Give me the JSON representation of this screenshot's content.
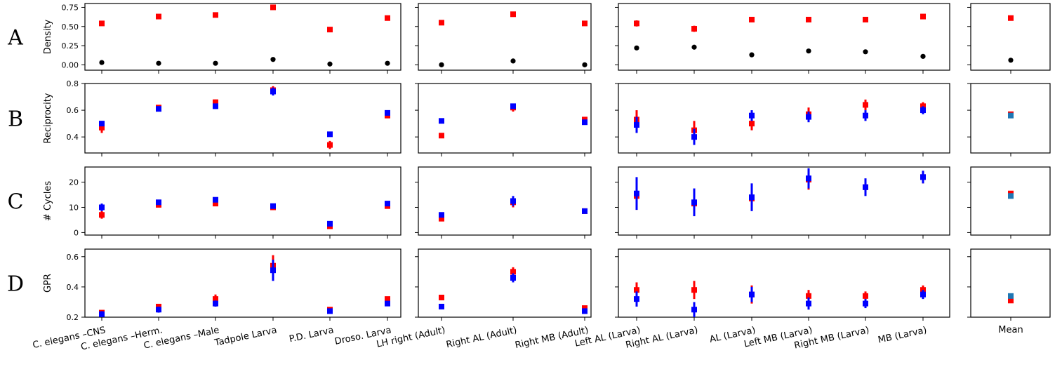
{
  "chart_data": {
    "type": "scatter",
    "grid": false,
    "colors": {
      "red": "#ff0000",
      "blue": "#0000ff",
      "black": "#000000",
      "teal": "#1f77b4"
    },
    "row_letters": [
      "A",
      "B",
      "C",
      "D"
    ],
    "groups": [
      {
        "categories": [
          "C. elegans –CNS",
          "C. elegans –Herm.",
          "C. elegans –Male",
          "Tadpole Larva",
          "P.D. Larva",
          "Droso. Larva"
        ]
      },
      {
        "categories": [
          "LH right (Adult)",
          "Right AL (Adult)",
          "Right MB (Adult)"
        ]
      },
      {
        "categories": [
          "Left AL (Larva)",
          "Right AL (Larva)",
          "AL (Larva)",
          "Left MB (Larva)",
          "Right MB (Larva)",
          "MB (Larva)"
        ]
      },
      {
        "categories": [
          "Mean"
        ]
      }
    ],
    "rows": [
      {
        "ylabel": "Density",
        "ylim": [
          -0.07,
          0.8
        ],
        "yticks": [
          0.0,
          0.25,
          0.5,
          0.75
        ],
        "ytick_labels": [
          "0.00",
          "0.25",
          "0.50",
          "0.75"
        ],
        "groups": [
          {
            "series": [
              {
                "color": "red",
                "marker": "square",
                "values": [
                  0.54,
                  0.63,
                  0.65,
                  0.75,
                  0.46,
                  0.61
                ],
                "err": [
                  0,
                  0,
                  0,
                  0,
                  0,
                  0
                ]
              },
              {
                "color": "black",
                "marker": "circle",
                "values": [
                  0.03,
                  0.02,
                  0.02,
                  0.07,
                  0.01,
                  0.02
                ],
                "err": [
                  0,
                  0,
                  0,
                  0,
                  0,
                  0
                ]
              }
            ]
          },
          {
            "series": [
              {
                "color": "red",
                "marker": "square",
                "values": [
                  0.55,
                  0.66,
                  0.54
                ],
                "err": [
                  0,
                  0,
                  0
                ]
              },
              {
                "color": "black",
                "marker": "circle",
                "values": [
                  0.0,
                  0.05,
                  0.0
                ],
                "err": [
                  0,
                  0,
                  0
                ]
              }
            ]
          },
          {
            "series": [
              {
                "color": "red",
                "marker": "square",
                "values": [
                  0.54,
                  0.47,
                  0.59,
                  0.59,
                  0.59,
                  0.63
                ],
                "err": [
                  0.04,
                  0.04,
                  0,
                  0,
                  0,
                  0
                ]
              },
              {
                "color": "black",
                "marker": "circle",
                "values": [
                  0.22,
                  0.23,
                  0.13,
                  0.18,
                  0.17,
                  0.11
                ],
                "err": [
                  0,
                  0,
                  0,
                  0,
                  0,
                  0
                ]
              }
            ]
          },
          {
            "series": [
              {
                "color": "red",
                "marker": "square",
                "values": [
                  0.61
                ],
                "err": [
                  0
                ]
              },
              {
                "color": "black",
                "marker": "circle",
                "values": [
                  0.06
                ],
                "err": [
                  0
                ]
              }
            ]
          }
        ]
      },
      {
        "ylabel": "Reciprocity",
        "ylim": [
          0.28,
          0.8
        ],
        "yticks": [
          0.4,
          0.6,
          0.8
        ],
        "ytick_labels": [
          "0.4",
          "0.6",
          "0.8"
        ],
        "groups": [
          {
            "series": [
              {
                "color": "red",
                "marker": "square",
                "values": [
                  0.47,
                  0.62,
                  0.66,
                  0.75,
                  0.34,
                  0.56
                ],
                "err": [
                  0.04,
                  0,
                  0.02,
                  0.03,
                  0.03,
                  0
                ]
              },
              {
                "color": "blue",
                "marker": "square",
                "values": [
                  0.5,
                  0.61,
                  0.63,
                  0.74,
                  0.42,
                  0.58
                ],
                "err": [
                  0,
                  0.02,
                  0.02,
                  0.03,
                  0,
                  0
                ]
              }
            ]
          },
          {
            "series": [
              {
                "color": "red",
                "marker": "square",
                "values": [
                  0.41,
                  0.62,
                  0.53
                ],
                "err": [
                  0,
                  0.03,
                  0
                ]
              },
              {
                "color": "blue",
                "marker": "square",
                "values": [
                  0.52,
                  0.63,
                  0.51
                ],
                "err": [
                  0,
                  0.02,
                  0
                ]
              }
            ]
          },
          {
            "series": [
              {
                "color": "red",
                "marker": "square",
                "values": [
                  0.53,
                  0.45,
                  0.5,
                  0.57,
                  0.64,
                  0.63
                ],
                "err": [
                  0.07,
                  0.07,
                  0.05,
                  0.05,
                  0.04,
                  0.03
                ]
              },
              {
                "color": "blue",
                "marker": "square",
                "values": [
                  0.49,
                  0.4,
                  0.56,
                  0.55,
                  0.56,
                  0.6
                ],
                "err": [
                  0.06,
                  0.06,
                  0.04,
                  0.04,
                  0.04,
                  0.03
                ]
              }
            ]
          },
          {
            "series": [
              {
                "color": "red",
                "marker": "square",
                "values": [
                  0.57
                ],
                "err": [
                  0
                ]
              },
              {
                "color": "teal",
                "marker": "square",
                "values": [
                  0.56
                ],
                "err": [
                  0
                ]
              }
            ]
          }
        ]
      },
      {
        "ylabel": "# Cycles",
        "ylim": [
          -1,
          26
        ],
        "yticks": [
          0,
          10,
          20
        ],
        "ytick_labels": [
          "0",
          "10",
          "20"
        ],
        "groups": [
          {
            "series": [
              {
                "color": "red",
                "marker": "square",
                "values": [
                  7,
                  11,
                  11.5,
                  10,
                  2.5,
                  10.5
                ],
                "err": [
                  1.5,
                  0,
                  0,
                  1,
                  0,
                  0
                ]
              },
              {
                "color": "blue",
                "marker": "square",
                "values": [
                  10,
                  12,
                  13,
                  10.5,
                  3.5,
                  11.5
                ],
                "err": [
                  1.5,
                  1,
                  1,
                  1,
                  0.5,
                  0.5
                ]
              }
            ]
          },
          {
            "series": [
              {
                "color": "red",
                "marker": "square",
                "values": [
                  5.5,
                  12,
                  8.5
                ],
                "err": [
                  0,
                  2,
                  0
                ]
              },
              {
                "color": "blue",
                "marker": "square",
                "values": [
                  7,
                  12.5,
                  8.5
                ],
                "err": [
                  1,
                  2,
                  0
                ]
              }
            ]
          },
          {
            "series": [
              {
                "color": "red",
                "marker": "square",
                "values": [
                  14.5,
                  11.5,
                  13.5,
                  21,
                  18,
                  22
                ],
                "err": [
                  5.5,
                  5,
                  4.5,
                  4,
                  3,
                  2.5
                ]
              },
              {
                "color": "blue",
                "marker": "square",
                "values": [
                  15.5,
                  12,
                  14,
                  21.5,
                  18,
                  22
                ],
                "err": [
                  6.5,
                  5.5,
                  5.5,
                  4,
                  3.5,
                  2.5
                ]
              }
            ]
          },
          {
            "series": [
              {
                "color": "red",
                "marker": "square",
                "values": [
                  15.5
                ],
                "err": [
                  0
                ]
              },
              {
                "color": "teal",
                "marker": "square",
                "values": [
                  14.5
                ],
                "err": [
                  0
                ]
              }
            ]
          }
        ]
      },
      {
        "ylabel": "GPR",
        "ylim": [
          0.2,
          0.65
        ],
        "yticks": [
          0.2,
          0.4,
          0.6
        ],
        "ytick_labels": [
          "0.2",
          "0.4",
          "0.6"
        ],
        "groups": [
          {
            "series": [
              {
                "color": "red",
                "marker": "square",
                "values": [
                  0.23,
                  0.27,
                  0.32,
                  0.54,
                  0.25,
                  0.32
                ],
                "err": [
                  0,
                  0,
                  0.03,
                  0.07,
                  0,
                  0
                ]
              },
              {
                "color": "blue",
                "marker": "square",
                "values": [
                  0.22,
                  0.25,
                  0.29,
                  0.51,
                  0.24,
                  0.29
                ],
                "err": [
                  0.02,
                  0.02,
                  0.02,
                  0.07,
                  0,
                  0
                ]
              }
            ]
          },
          {
            "series": [
              {
                "color": "red",
                "marker": "square",
                "values": [
                  0.33,
                  0.5,
                  0.26
                ],
                "err": [
                  0,
                  0.03,
                  0
                ]
              },
              {
                "color": "blue",
                "marker": "square",
                "values": [
                  0.27,
                  0.46,
                  0.24
                ],
                "err": [
                  0,
                  0.03,
                  0
                ]
              }
            ]
          },
          {
            "series": [
              {
                "color": "red",
                "marker": "square",
                "values": [
                  0.38,
                  0.38,
                  0.35,
                  0.34,
                  0.34,
                  0.38
                ],
                "err": [
                  0.05,
                  0.06,
                  0.06,
                  0.04,
                  0.03,
                  0.03
                ]
              },
              {
                "color": "blue",
                "marker": "square",
                "values": [
                  0.32,
                  0.25,
                  0.35,
                  0.29,
                  0.29,
                  0.35
                ],
                "err": [
                  0.05,
                  0.05,
                  0.05,
                  0.04,
                  0.03,
                  0.03
                ]
              }
            ]
          },
          {
            "series": [
              {
                "color": "red",
                "marker": "square",
                "values": [
                  0.31
                ],
                "err": [
                  0
                ]
              },
              {
                "color": "teal",
                "marker": "square",
                "values": [
                  0.34
                ],
                "err": [
                  0
                ]
              }
            ]
          }
        ]
      }
    ]
  }
}
